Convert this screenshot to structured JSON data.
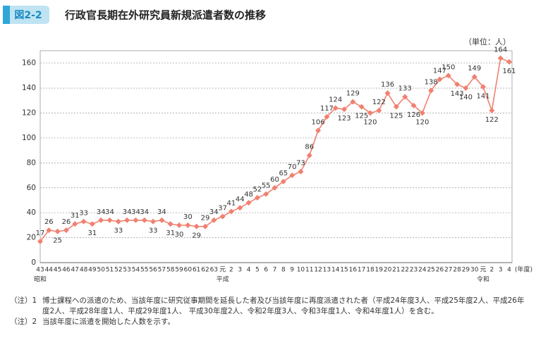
{
  "chart_data": {
    "type": "line",
    "figure_number": "図2-2",
    "title": "行政官長期在外研究員新規派遣者数の推移",
    "unit_label": "（単位：人）",
    "x_unit": "(年度)",
    "eras": [
      "昭和",
      "平成",
      "令和"
    ],
    "categories": [
      "43",
      "44",
      "45",
      "46",
      "47",
      "48",
      "49",
      "50",
      "51",
      "52",
      "53",
      "54",
      "55",
      "56",
      "57",
      "58",
      "59",
      "60",
      "61",
      "62",
      "63",
      "元",
      "2",
      "3",
      "4",
      "5",
      "6",
      "7",
      "8",
      "9",
      "10",
      "11",
      "12",
      "13",
      "14",
      "15",
      "16",
      "17",
      "18",
      "19",
      "20",
      "21",
      "22",
      "23",
      "24",
      "25",
      "26",
      "27",
      "28",
      "29",
      "30",
      "元",
      "2",
      "3",
      "4"
    ],
    "values": [
      17,
      26,
      25,
      26,
      31,
      33,
      31,
      34,
      34,
      33,
      34,
      34,
      34,
      33,
      34,
      31,
      30,
      30,
      29,
      29,
      34,
      37,
      41,
      44,
      48,
      52,
      55,
      60,
      65,
      70,
      73,
      86,
      106,
      117,
      124,
      123,
      129,
      125,
      120,
      122,
      136,
      125,
      133,
      126,
      120,
      138,
      147,
      150,
      143,
      140,
      149,
      141,
      122,
      164,
      161
    ],
    "color": "#f08070",
    "ylim": [
      0,
      170
    ],
    "yticks": [
      0,
      20,
      40,
      60,
      80,
      100,
      120,
      140,
      160
    ],
    "grid": true
  },
  "notes": [
    {
      "label": "（注）1",
      "text": "博士課程への派遣のため、当該年度に研究従事期間を延長した者及び当該年度に再度派遣された者（平成24年度3人、平成25年度2人、平成26年度2人、平成28年度1人、平成29年度1人、 平成30年度2人、令和2年度3人、令和3年度1人、令和4年度1人）を含む。"
    },
    {
      "label": "（注）2",
      "text": "当該年度に派遣を開始した人数を示す。"
    }
  ]
}
